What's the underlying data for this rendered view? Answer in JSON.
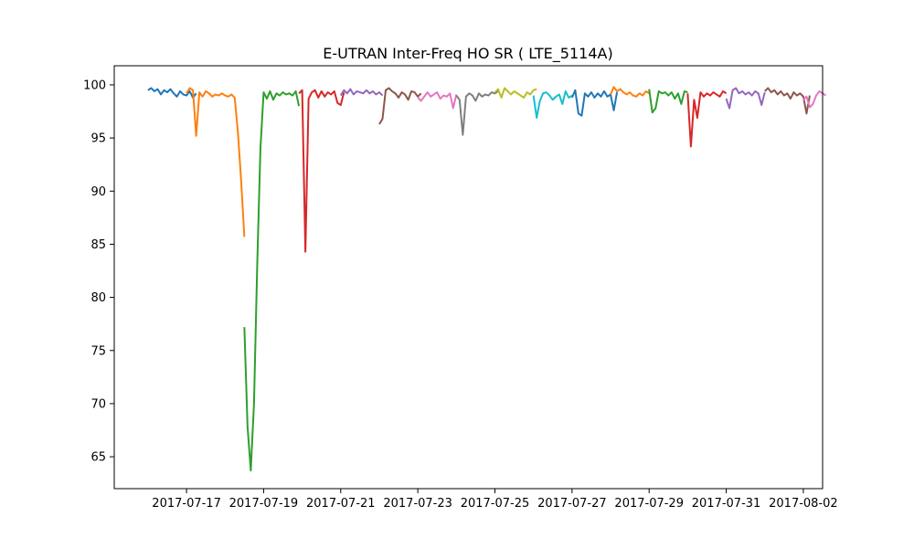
{
  "chart_data": {
    "type": "line",
    "title": "E-UTRAN Inter-Freq HO SR ( LTE_5114A)",
    "xlabel": "",
    "ylabel": "",
    "x_axis_type": "date",
    "xlim": [
      "2017-07-15T03:00",
      "2017-08-02T12:00"
    ],
    "ylim": [
      62,
      101.8
    ],
    "xticks": [
      "2017-07-17",
      "2017-07-19",
      "2017-07-21",
      "2017-07-23",
      "2017-07-25",
      "2017-07-27",
      "2017-07-29",
      "2017-07-31",
      "2017-08-02"
    ],
    "yticks": [
      65,
      70,
      75,
      80,
      85,
      90,
      95,
      100
    ],
    "grid": false,
    "legend": "none",
    "colors": [
      "#1f77b4",
      "#ff7f0e",
      "#2ca02c",
      "#d62728",
      "#9467bd",
      "#8c564b",
      "#e377c2",
      "#7f7f7f",
      "#bcbd22",
      "#17becf"
    ],
    "series": [
      {
        "color": "#1f77b4",
        "points": [
          [
            "2017-07-16T00:00",
            99.5
          ],
          [
            "2017-07-16T02:00",
            99.7
          ],
          [
            "2017-07-16T04:00",
            99.4
          ],
          [
            "2017-07-16T06:00",
            99.6
          ],
          [
            "2017-07-16T08:00",
            99.1
          ],
          [
            "2017-07-16T10:00",
            99.5
          ],
          [
            "2017-07-16T12:00",
            99.3
          ],
          [
            "2017-07-16T14:00",
            99.6
          ],
          [
            "2017-07-16T16:00",
            99.2
          ],
          [
            "2017-07-16T18:00",
            98.9
          ],
          [
            "2017-07-16T20:00",
            99.4
          ],
          [
            "2017-07-16T22:00",
            99.1
          ],
          [
            "2017-07-17T00:00",
            99.0
          ],
          [
            "2017-07-17T02:00",
            99.4
          ],
          [
            "2017-07-17T04:00",
            98.8
          ],
          [
            "2017-07-17T06:00",
            99.2
          ]
        ]
      },
      {
        "color": "#ff7f0e",
        "points": [
          [
            "2017-07-17T00:00",
            99.2
          ],
          [
            "2017-07-17T02:00",
            99.7
          ],
          [
            "2017-07-17T04:00",
            99.5
          ],
          [
            "2017-07-17T06:00",
            95.2
          ],
          [
            "2017-07-17T08:00",
            99.3
          ],
          [
            "2017-07-17T10:00",
            98.9
          ],
          [
            "2017-07-17T12:00",
            99.4
          ],
          [
            "2017-07-17T14:00",
            99.2
          ],
          [
            "2017-07-17T16:00",
            98.9
          ],
          [
            "2017-07-17T18:00",
            99.1
          ],
          [
            "2017-07-17T20:00",
            99.0
          ],
          [
            "2017-07-17T22:00",
            99.2
          ],
          [
            "2017-07-18T00:00",
            99.0
          ],
          [
            "2017-07-18T02:00",
            98.9
          ],
          [
            "2017-07-18T04:00",
            99.1
          ],
          [
            "2017-07-18T06:00",
            98.8
          ],
          [
            "2017-07-18T08:00",
            95.5
          ],
          [
            "2017-07-18T10:00",
            91.0
          ],
          [
            "2017-07-18T12:00",
            85.7
          ]
        ]
      },
      {
        "color": "#2ca02c",
        "points": [
          [
            "2017-07-18T12:00",
            77.2
          ],
          [
            "2017-07-18T14:00",
            67.8
          ],
          [
            "2017-07-18T16:00",
            63.7
          ],
          [
            "2017-07-18T18:00",
            70.0
          ],
          [
            "2017-07-18T20:00",
            83.0
          ],
          [
            "2017-07-18T22:00",
            94.0
          ],
          [
            "2017-07-19T00:00",
            99.3
          ],
          [
            "2017-07-19T02:00",
            98.7
          ],
          [
            "2017-07-19T04:00",
            99.4
          ],
          [
            "2017-07-19T06:00",
            98.6
          ],
          [
            "2017-07-19T08:00",
            99.2
          ],
          [
            "2017-07-19T10:00",
            99.0
          ],
          [
            "2017-07-19T12:00",
            99.3
          ],
          [
            "2017-07-19T14:00",
            99.1
          ],
          [
            "2017-07-19T16:00",
            99.2
          ],
          [
            "2017-07-19T18:00",
            99.0
          ],
          [
            "2017-07-19T20:00",
            99.4
          ],
          [
            "2017-07-19T22:00",
            98.0
          ]
        ]
      },
      {
        "color": "#d62728",
        "points": [
          [
            "2017-07-19T22:00",
            99.2
          ],
          [
            "2017-07-20T00:00",
            99.5
          ],
          [
            "2017-07-20T02:00",
            84.3
          ],
          [
            "2017-07-20T04:00",
            98.7
          ],
          [
            "2017-07-20T06:00",
            99.3
          ],
          [
            "2017-07-20T08:00",
            99.5
          ],
          [
            "2017-07-20T10:00",
            98.8
          ],
          [
            "2017-07-20T12:00",
            99.4
          ],
          [
            "2017-07-20T14:00",
            98.9
          ],
          [
            "2017-07-20T16:00",
            99.3
          ],
          [
            "2017-07-20T18:00",
            99.1
          ],
          [
            "2017-07-20T20:00",
            99.4
          ],
          [
            "2017-07-20T22:00",
            98.3
          ],
          [
            "2017-07-21T00:00",
            98.1
          ],
          [
            "2017-07-21T02:00",
            99.3
          ]
        ]
      },
      {
        "color": "#9467bd",
        "points": [
          [
            "2017-07-21T00:00",
            99.0
          ],
          [
            "2017-07-21T02:00",
            99.5
          ],
          [
            "2017-07-21T04:00",
            99.2
          ],
          [
            "2017-07-21T06:00",
            99.6
          ],
          [
            "2017-07-21T08:00",
            99.1
          ],
          [
            "2017-07-21T10:00",
            99.4
          ],
          [
            "2017-07-21T12:00",
            99.3
          ],
          [
            "2017-07-21T14:00",
            99.2
          ],
          [
            "2017-07-21T16:00",
            99.5
          ],
          [
            "2017-07-21T18:00",
            99.2
          ],
          [
            "2017-07-21T20:00",
            99.4
          ],
          [
            "2017-07-21T22:00",
            99.1
          ],
          [
            "2017-07-22T00:00",
            99.3
          ],
          [
            "2017-07-22T02:00",
            99.0
          ]
        ]
      },
      {
        "color": "#8c564b",
        "points": [
          [
            "2017-07-22T00:00",
            96.3
          ],
          [
            "2017-07-22T02:00",
            96.8
          ],
          [
            "2017-07-22T04:00",
            99.5
          ],
          [
            "2017-07-22T06:00",
            99.7
          ],
          [
            "2017-07-22T08:00",
            99.4
          ],
          [
            "2017-07-22T10:00",
            99.2
          ],
          [
            "2017-07-22T12:00",
            98.8
          ],
          [
            "2017-07-22T14:00",
            99.3
          ],
          [
            "2017-07-22T16:00",
            99.1
          ],
          [
            "2017-07-22T18:00",
            98.6
          ],
          [
            "2017-07-22T20:00",
            99.4
          ],
          [
            "2017-07-22T22:00",
            99.3
          ],
          [
            "2017-07-23T00:00",
            98.9
          ],
          [
            "2017-07-23T02:00",
            99.2
          ]
        ]
      },
      {
        "color": "#e377c2",
        "points": [
          [
            "2017-07-23T00:00",
            98.8
          ],
          [
            "2017-07-23T02:00",
            98.5
          ],
          [
            "2017-07-23T04:00",
            98.9
          ],
          [
            "2017-07-23T06:00",
            99.3
          ],
          [
            "2017-07-23T08:00",
            98.9
          ],
          [
            "2017-07-23T10:00",
            99.1
          ],
          [
            "2017-07-23T12:00",
            99.3
          ],
          [
            "2017-07-23T14:00",
            98.7
          ],
          [
            "2017-07-23T16:00",
            99.0
          ],
          [
            "2017-07-23T18:00",
            98.9
          ],
          [
            "2017-07-23T20:00",
            99.2
          ],
          [
            "2017-07-23T22:00",
            97.8
          ],
          [
            "2017-07-24T00:00",
            99.1
          ]
        ]
      },
      {
        "color": "#7f7f7f",
        "points": [
          [
            "2017-07-24T00:00",
            99.0
          ],
          [
            "2017-07-24T02:00",
            98.6
          ],
          [
            "2017-07-24T04:00",
            95.3
          ],
          [
            "2017-07-24T06:00",
            98.9
          ],
          [
            "2017-07-24T08:00",
            99.2
          ],
          [
            "2017-07-24T10:00",
            99.0
          ],
          [
            "2017-07-24T12:00",
            98.5
          ],
          [
            "2017-07-24T14:00",
            99.2
          ],
          [
            "2017-07-24T16:00",
            98.9
          ],
          [
            "2017-07-24T18:00",
            99.1
          ],
          [
            "2017-07-24T20:00",
            99.0
          ],
          [
            "2017-07-24T22:00",
            99.3
          ],
          [
            "2017-07-25T00:00",
            99.2
          ],
          [
            "2017-07-25T02:00",
            99.4
          ]
        ]
      },
      {
        "color": "#bcbd22",
        "points": [
          [
            "2017-07-25T00:00",
            99.3
          ],
          [
            "2017-07-25T02:00",
            99.6
          ],
          [
            "2017-07-25T04:00",
            98.8
          ],
          [
            "2017-07-25T06:00",
            99.7
          ],
          [
            "2017-07-25T08:00",
            99.4
          ],
          [
            "2017-07-25T10:00",
            99.1
          ],
          [
            "2017-07-25T12:00",
            99.4
          ],
          [
            "2017-07-25T14:00",
            99.2
          ],
          [
            "2017-07-25T16:00",
            99.0
          ],
          [
            "2017-07-25T18:00",
            98.8
          ],
          [
            "2017-07-25T20:00",
            99.3
          ],
          [
            "2017-07-25T22:00",
            99.1
          ],
          [
            "2017-07-26T00:00",
            99.5
          ],
          [
            "2017-07-26T02:00",
            99.6
          ]
        ]
      },
      {
        "color": "#17becf",
        "points": [
          [
            "2017-07-26T00:00",
            99.0
          ],
          [
            "2017-07-26T02:00",
            96.9
          ],
          [
            "2017-07-26T04:00",
            98.5
          ],
          [
            "2017-07-26T06:00",
            99.2
          ],
          [
            "2017-07-26T08:00",
            99.3
          ],
          [
            "2017-07-26T10:00",
            99.0
          ],
          [
            "2017-07-26T12:00",
            98.6
          ],
          [
            "2017-07-26T14:00",
            98.9
          ],
          [
            "2017-07-26T16:00",
            99.1
          ],
          [
            "2017-07-26T18:00",
            98.2
          ],
          [
            "2017-07-26T20:00",
            99.4
          ],
          [
            "2017-07-26T22:00",
            98.8
          ],
          [
            "2017-07-27T00:00",
            99.0
          ]
        ]
      },
      {
        "color": "#1f77b4",
        "points": [
          [
            "2017-07-27T00:00",
            98.8
          ],
          [
            "2017-07-27T02:00",
            99.5
          ],
          [
            "2017-07-27T04:00",
            97.3
          ],
          [
            "2017-07-27T06:00",
            97.1
          ],
          [
            "2017-07-27T08:00",
            99.2
          ],
          [
            "2017-07-27T10:00",
            98.9
          ],
          [
            "2017-07-27T12:00",
            99.3
          ],
          [
            "2017-07-27T14:00",
            98.8
          ],
          [
            "2017-07-27T16:00",
            99.2
          ],
          [
            "2017-07-27T18:00",
            98.9
          ],
          [
            "2017-07-27T20:00",
            99.4
          ],
          [
            "2017-07-27T22:00",
            98.9
          ],
          [
            "2017-07-28T00:00",
            99.1
          ],
          [
            "2017-07-28T02:00",
            97.6
          ],
          [
            "2017-07-28T04:00",
            99.3
          ]
        ]
      },
      {
        "color": "#ff7f0e",
        "points": [
          [
            "2017-07-28T00:00",
            99.1
          ],
          [
            "2017-07-28T02:00",
            99.8
          ],
          [
            "2017-07-28T04:00",
            99.4
          ],
          [
            "2017-07-28T06:00",
            99.6
          ],
          [
            "2017-07-28T08:00",
            99.3
          ],
          [
            "2017-07-28T10:00",
            99.1
          ],
          [
            "2017-07-28T12:00",
            99.3
          ],
          [
            "2017-07-28T14:00",
            99.0
          ],
          [
            "2017-07-28T16:00",
            98.9
          ],
          [
            "2017-07-28T18:00",
            99.2
          ],
          [
            "2017-07-28T20:00",
            99.0
          ],
          [
            "2017-07-28T22:00",
            99.4
          ],
          [
            "2017-07-29T00:00",
            99.2
          ]
        ]
      },
      {
        "color": "#2ca02c",
        "points": [
          [
            "2017-07-29T00:00",
            99.6
          ],
          [
            "2017-07-29T02:00",
            97.4
          ],
          [
            "2017-07-29T04:00",
            97.8
          ],
          [
            "2017-07-29T06:00",
            99.4
          ],
          [
            "2017-07-29T08:00",
            99.2
          ],
          [
            "2017-07-29T10:00",
            99.3
          ],
          [
            "2017-07-29T12:00",
            99.0
          ],
          [
            "2017-07-29T14:00",
            99.3
          ],
          [
            "2017-07-29T16:00",
            98.7
          ],
          [
            "2017-07-29T18:00",
            99.2
          ],
          [
            "2017-07-29T20:00",
            98.2
          ],
          [
            "2017-07-29T22:00",
            99.4
          ],
          [
            "2017-07-30T00:00",
            99.3
          ]
        ]
      },
      {
        "color": "#d62728",
        "points": [
          [
            "2017-07-30T00:00",
            99.2
          ],
          [
            "2017-07-30T02:00",
            94.2
          ],
          [
            "2017-07-30T04:00",
            98.6
          ],
          [
            "2017-07-30T06:00",
            96.9
          ],
          [
            "2017-07-30T08:00",
            99.3
          ],
          [
            "2017-07-30T10:00",
            98.9
          ],
          [
            "2017-07-30T12:00",
            99.2
          ],
          [
            "2017-07-30T14:00",
            99.0
          ],
          [
            "2017-07-30T16:00",
            99.3
          ],
          [
            "2017-07-30T18:00",
            99.1
          ],
          [
            "2017-07-30T20:00",
            98.9
          ],
          [
            "2017-07-30T22:00",
            99.4
          ],
          [
            "2017-07-31T00:00",
            99.2
          ]
        ]
      },
      {
        "color": "#9467bd",
        "points": [
          [
            "2017-07-31T00:00",
            98.7
          ],
          [
            "2017-07-31T02:00",
            97.8
          ],
          [
            "2017-07-31T04:00",
            99.5
          ],
          [
            "2017-07-31T06:00",
            99.7
          ],
          [
            "2017-07-31T08:00",
            99.2
          ],
          [
            "2017-07-31T10:00",
            99.4
          ],
          [
            "2017-07-31T12:00",
            99.1
          ],
          [
            "2017-07-31T14:00",
            99.3
          ],
          [
            "2017-07-31T16:00",
            99.0
          ],
          [
            "2017-07-31T18:00",
            99.4
          ],
          [
            "2017-07-31T20:00",
            99.2
          ],
          [
            "2017-07-31T22:00",
            98.1
          ],
          [
            "2017-08-01T00:00",
            99.3
          ]
        ]
      },
      {
        "color": "#8c564b",
        "points": [
          [
            "2017-08-01T00:00",
            99.4
          ],
          [
            "2017-08-01T02:00",
            99.7
          ],
          [
            "2017-08-01T04:00",
            99.3
          ],
          [
            "2017-08-01T06:00",
            99.5
          ],
          [
            "2017-08-01T08:00",
            99.1
          ],
          [
            "2017-08-01T10:00",
            99.4
          ],
          [
            "2017-08-01T12:00",
            99.0
          ],
          [
            "2017-08-01T14:00",
            99.2
          ],
          [
            "2017-08-01T16:00",
            98.7
          ],
          [
            "2017-08-01T18:00",
            99.3
          ],
          [
            "2017-08-01T20:00",
            99.0
          ],
          [
            "2017-08-01T22:00",
            99.2
          ],
          [
            "2017-08-02T00:00",
            98.9
          ],
          [
            "2017-08-02T02:00",
            97.3
          ],
          [
            "2017-08-02T04:00",
            99.0
          ]
        ]
      },
      {
        "color": "#e377c2",
        "points": [
          [
            "2017-08-02T00:00",
            98.6
          ],
          [
            "2017-08-02T02:00",
            98.9
          ],
          [
            "2017-08-02T04:00",
            97.9
          ],
          [
            "2017-08-02T06:00",
            98.2
          ],
          [
            "2017-08-02T08:00",
            99.0
          ],
          [
            "2017-08-02T10:00",
            99.4
          ],
          [
            "2017-08-02T12:00",
            99.2
          ],
          [
            "2017-08-02T14:00",
            99.0
          ]
        ]
      }
    ]
  }
}
